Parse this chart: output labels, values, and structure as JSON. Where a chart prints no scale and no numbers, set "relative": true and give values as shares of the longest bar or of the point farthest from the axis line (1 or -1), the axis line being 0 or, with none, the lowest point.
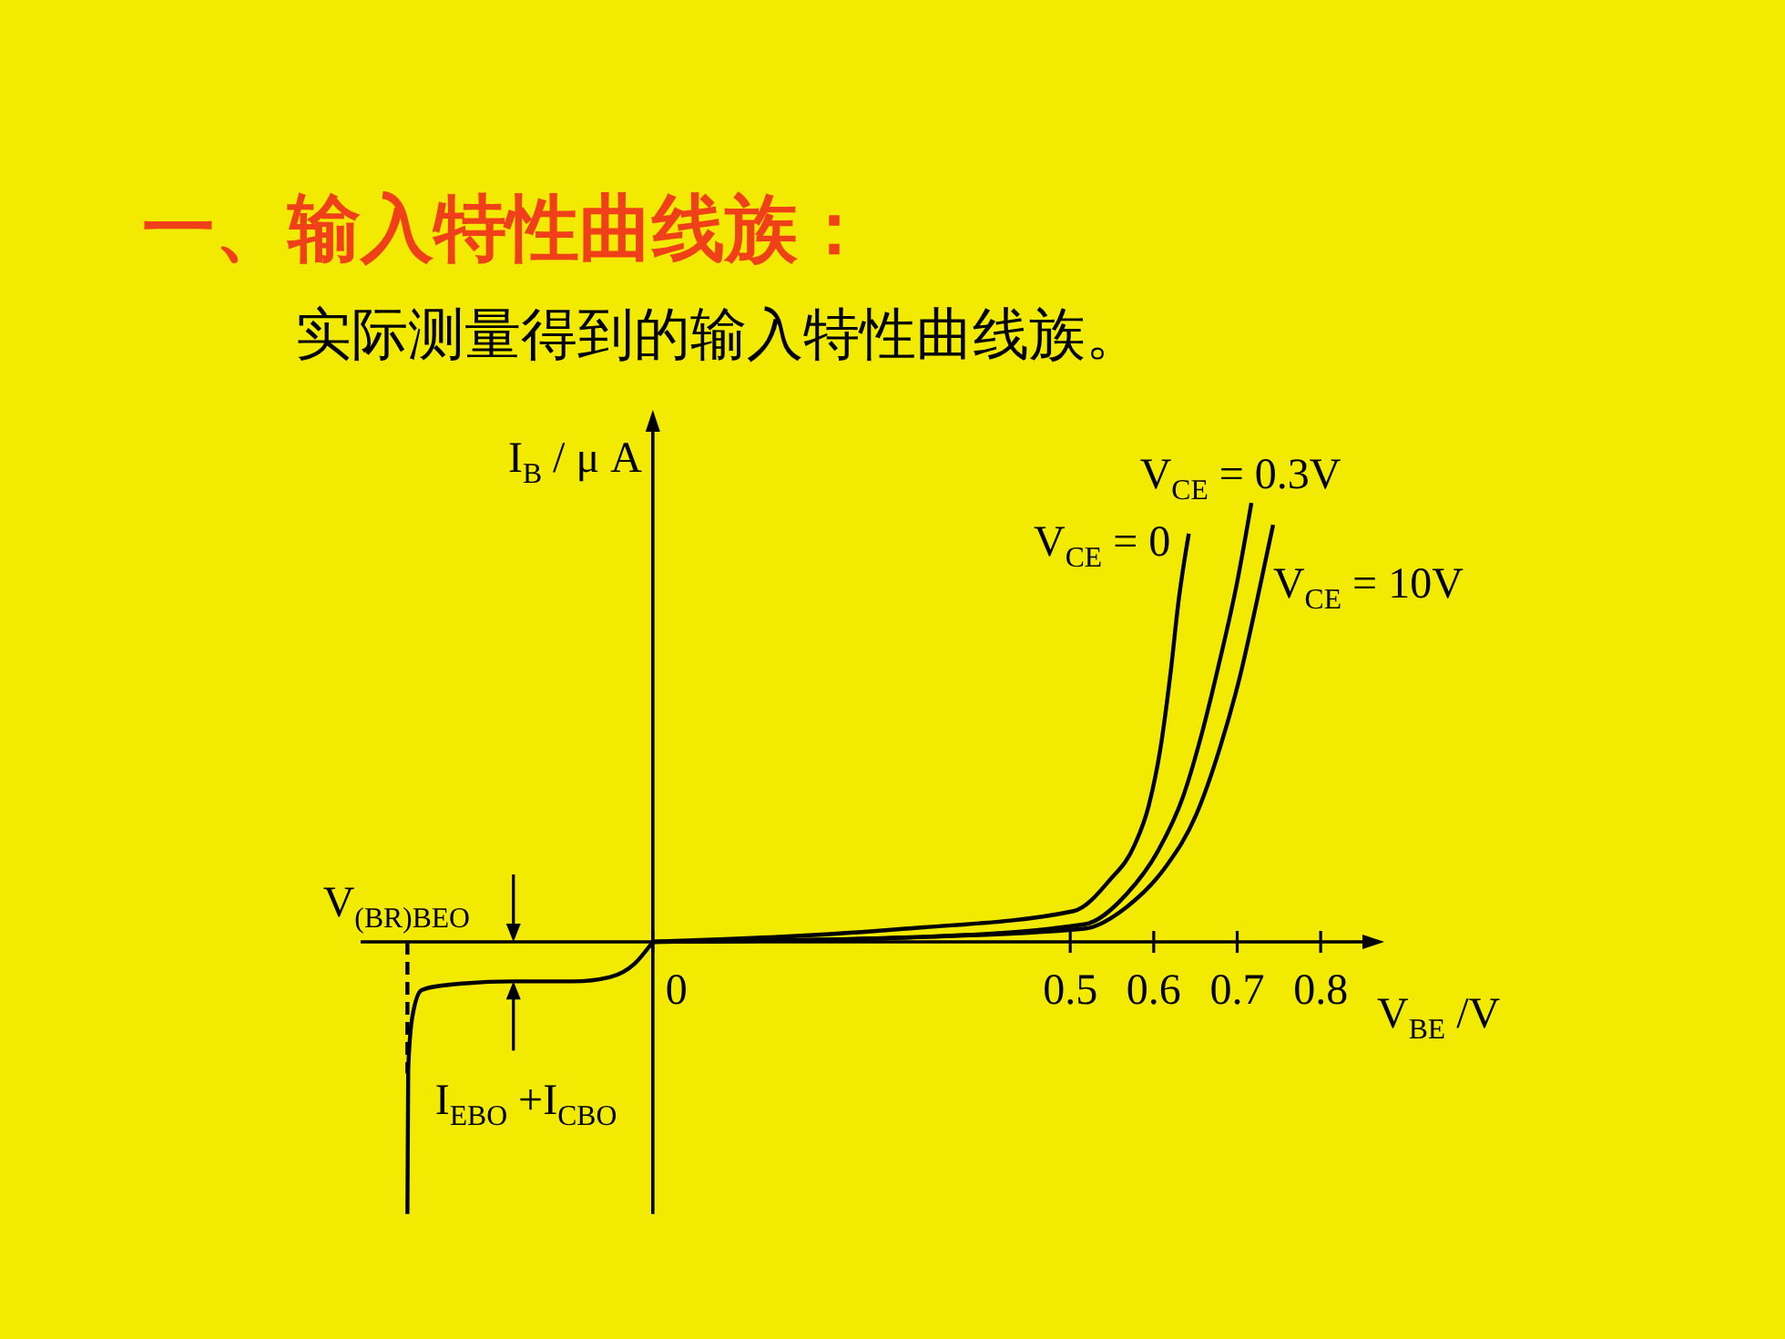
{
  "chart_data": {
    "type": "line",
    "title": "一、输入特性曲线族：",
    "subtitle": "实际测量得到的输入特性曲线族。",
    "xlabel": "V$_{BE}$ /V",
    "ylabel": "I$_{B}$ / μ A",
    "relative": true,
    "xlim": [
      -0.35,
      0.85
    ],
    "xticks": [
      0,
      0.5,
      0.6,
      0.7,
      0.8
    ],
    "marker": "none",
    "line_style": "solid",
    "series": [
      {
        "name": "V$_{CE}$ = 0",
        "color": "#000000",
        "x": [
          0,
          0.303,
          0.504,
          0.547,
          0.577,
          0.594,
          0.608,
          0.62,
          0.63,
          0.642
        ],
        "values": [
          0,
          0.03,
          0.07,
          0.14,
          0.22,
          0.31,
          0.44,
          0.61,
          0.78,
          0.93
        ]
      },
      {
        "name": "V$_{CE}$ = 0.3V",
        "color": "#000000",
        "x": [
          0,
          0.303,
          0.517,
          0.568,
          0.606,
          0.635,
          0.657,
          0.679,
          0.7,
          0.717
        ],
        "values": [
          0,
          0.01,
          0.04,
          0.11,
          0.21,
          0.33,
          0.47,
          0.64,
          0.82,
          1
        ]
      },
      {
        "name": "V$_{CE}$ = 10V",
        "color": "#000000",
        "x": [
          0,
          0.303,
          0.517,
          0.568,
          0.614,
          0.651,
          0.679,
          0.704,
          0.724,
          0.743
        ],
        "values": [
          0,
          0.01,
          0.03,
          0.08,
          0.17,
          0.29,
          0.44,
          0.61,
          0.78,
          0.95
        ]
      },
      {
        "color": "#000000",
        "x": [
          -0.294,
          -0.293,
          -0.288,
          -0.277,
          -0.255,
          -0.167,
          -0.095,
          -0.051,
          -0.022,
          0
        ],
        "values": [
          -0.62,
          -0.29,
          -0.17,
          -0.11,
          -0.1,
          -0.09,
          -0.09,
          -0.08,
          -0.05,
          0
        ]
      },
      {
        "color": "#000000",
        "x": [
          -0.294,
          -0.294
        ],
        "values": [
          0,
          -0.3
        ],
        "line_style": "dashed"
      }
    ],
    "annotations": [
      {
        "text": "V$_{(BR)BEO}$",
        "x": -0.294,
        "y": 0
      },
      {
        "text": "I$_{EBO}$ +I$_{CBO}$",
        "x": -0.167,
        "y": -0.09
      }
    ]
  }
}
